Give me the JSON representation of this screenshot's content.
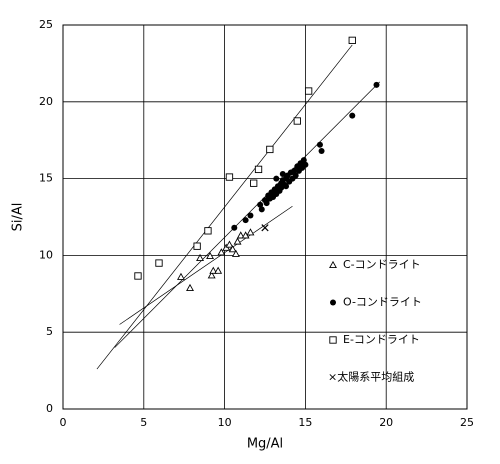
{
  "chart_data": {
    "type": "scatter",
    "x_label": "Mg/Al",
    "y_label": "Si/Al",
    "xlim": [
      0,
      25
    ],
    "ylim": [
      0,
      25
    ],
    "xticks": [
      0,
      5,
      10,
      15,
      20,
      25
    ],
    "yticks": [
      0,
      5,
      10,
      15,
      20,
      25
    ],
    "grid": true,
    "legend": "right",
    "series": [
      {
        "name": "C-コンドライト",
        "marker": "triangle",
        "color": "#000000",
        "x": [
          7.3,
          7.86,
          8.48,
          9.1,
          9.2,
          9.3,
          9.6,
          9.8,
          10.1,
          10.3,
          10.5,
          10.7,
          10.8,
          11.0,
          11.3,
          11.6
        ],
        "values": [
          8.6,
          7.88,
          9.83,
          9.96,
          8.7,
          9.0,
          9.0,
          10.2,
          10.5,
          10.7,
          10.4,
          10.1,
          10.9,
          11.3,
          11.3,
          11.5
        ]
      },
      {
        "name": "O-コンドライト",
        "marker": "circle",
        "color": "#000000",
        "x": [
          10.6,
          11.3,
          11.6,
          12.2,
          12.3,
          12.5,
          12.6,
          12.7,
          12.8,
          12.9,
          13.0,
          13.1,
          13.2,
          13.3,
          13.4,
          13.5,
          13.5,
          13.6,
          13.7,
          13.8,
          13.8,
          13.9,
          14.0,
          14.1,
          14.2,
          14.3,
          14.4,
          14.5,
          14.6,
          14.7,
          14.8,
          14.9,
          15.0,
          13.2,
          13.6,
          15.9,
          16.0,
          17.9,
          19.4
        ],
        "values": [
          11.8,
          12.3,
          12.6,
          13.3,
          13.0,
          13.6,
          13.4,
          13.9,
          13.7,
          14.1,
          13.8,
          14.3,
          14.0,
          14.5,
          14.2,
          14.7,
          14.4,
          14.9,
          14.6,
          15.0,
          14.5,
          15.2,
          14.8,
          15.4,
          15.0,
          15.5,
          15.2,
          15.8,
          15.5,
          16.0,
          15.7,
          16.2,
          15.9,
          15.0,
          15.3,
          17.2,
          16.8,
          19.1,
          21.1
        ]
      },
      {
        "name": "E-コンドライト",
        "marker": "square",
        "color": "#000000",
        "x": [
          4.64,
          5.94,
          8.3,
          8.97,
          10.3,
          11.8,
          12.1,
          12.8,
          14.5,
          15.2,
          17.9
        ],
        "values": [
          8.66,
          9.5,
          10.6,
          11.6,
          15.1,
          14.7,
          15.6,
          16.9,
          18.75,
          20.7,
          24.0
        ]
      },
      {
        "name": "×太陽系平均組成",
        "marker": "x",
        "color": "#000000",
        "x": [
          12.5
        ],
        "values": [
          11.8
        ]
      }
    ],
    "trend_lines": [
      {
        "x": [
          2.1,
          17.9
        ],
        "y": [
          2.6,
          23.7
        ]
      },
      {
        "x": [
          3.2,
          19.6
        ],
        "y": [
          4.0,
          21.3
        ]
      },
      {
        "x": [
          3.5,
          14.2
        ],
        "y": [
          5.5,
          13.2
        ]
      }
    ]
  }
}
